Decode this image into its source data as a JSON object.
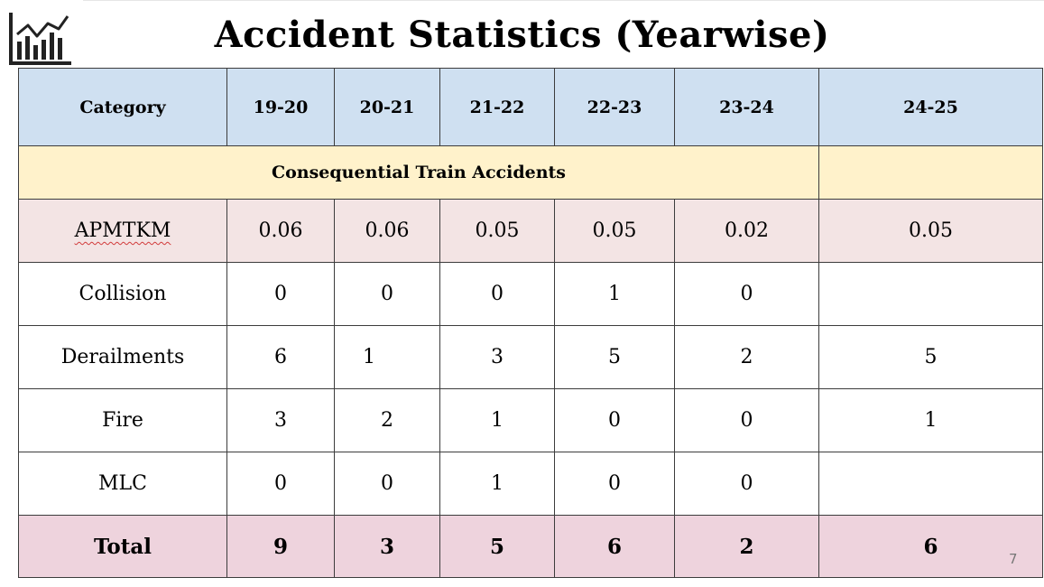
{
  "title": "Accident Statistics (Yearwise)",
  "logo_icon": "bar-chart-icon",
  "table": {
    "header": [
      "Category",
      "19-20",
      "20-21",
      "21-22",
      "22-23",
      "23-24",
      "24-25"
    ],
    "section_label": "Consequential Train Accidents",
    "rows": [
      {
        "label": "APMTKM",
        "values": [
          "0.06",
          "0.06",
          "0.05",
          "0.05",
          "0.02",
          "0.05"
        ]
      },
      {
        "label": "Collision",
        "values": [
          "0",
          "0",
          "0",
          "1",
          "0",
          ""
        ]
      },
      {
        "label": "Derailments",
        "values": [
          "6",
          "1",
          "3",
          "5",
          "2",
          "5"
        ]
      },
      {
        "label": "Fire",
        "values": [
          "3",
          "2",
          "1",
          "0",
          "0",
          "1"
        ]
      },
      {
        "label": "MLC",
        "values": [
          "0",
          "0",
          "1",
          "0",
          "0",
          ""
        ]
      }
    ],
    "total": {
      "label": "Total",
      "values": [
        "9",
        "3",
        "5",
        "6",
        "2",
        "6"
      ]
    }
  },
  "page_number": "7",
  "colors": {
    "header_bg": "#cfe0f1",
    "section_bg": "#fff2cb",
    "apmtkm_bg": "#f3e4e4",
    "total_bg": "#eed3dd"
  }
}
